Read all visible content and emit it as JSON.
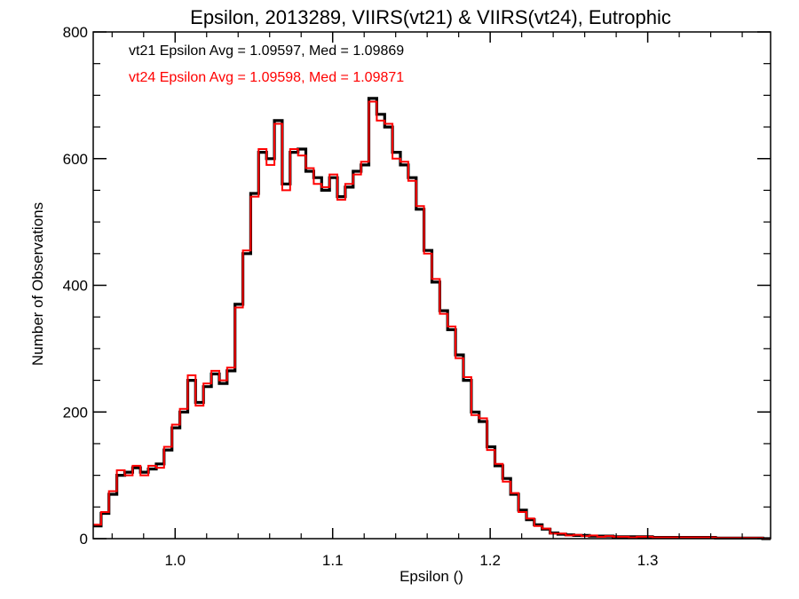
{
  "chart_data": {
    "type": "line",
    "title": "Epsilon, 2013289, VIIRS(vt21) & VIIRS(vt24), Eutrophic",
    "xlabel": "Epsilon ()",
    "ylabel": "Number of Observations",
    "xlim": [
      0.948,
      1.378
    ],
    "ylim": [
      0,
      800
    ],
    "grid": false,
    "x_ticks": [
      1.0,
      1.1,
      1.2,
      1.3
    ],
    "x_tick_labels": [
      "1.0",
      "1.1",
      "1.2",
      "1.3"
    ],
    "y_ticks": [
      0,
      200,
      400,
      600,
      800
    ],
    "y_tick_labels": [
      "0",
      "200",
      "400",
      "600",
      "800"
    ],
    "annotations": [
      {
        "text": "vt21 Epsilon Avg = 1.09597, Med = 1.09869",
        "color": "#000000"
      },
      {
        "text": "vt24 Epsilon Avg = 1.09598, Med = 1.09871",
        "color": "#ff0000"
      }
    ],
    "series": [
      {
        "color": "#000000",
        "step": true,
        "x": [
          0.948,
          0.953,
          0.958,
          0.963,
          0.968,
          0.973,
          0.978,
          0.983,
          0.988,
          0.993,
          0.998,
          1.003,
          1.008,
          1.013,
          1.018,
          1.023,
          1.028,
          1.033,
          1.038,
          1.043,
          1.048,
          1.053,
          1.058,
          1.063,
          1.068,
          1.073,
          1.078,
          1.083,
          1.088,
          1.093,
          1.098,
          1.103,
          1.108,
          1.113,
          1.118,
          1.123,
          1.128,
          1.133,
          1.138,
          1.143,
          1.148,
          1.153,
          1.158,
          1.163,
          1.168,
          1.173,
          1.178,
          1.183,
          1.188,
          1.193,
          1.198,
          1.203,
          1.208,
          1.213,
          1.218,
          1.223,
          1.228,
          1.233,
          1.238,
          1.243,
          1.248,
          1.253,
          1.258,
          1.263,
          1.268,
          1.273,
          1.278,
          1.283,
          1.288,
          1.293,
          1.298,
          1.303,
          1.308,
          1.313,
          1.318,
          1.323,
          1.328,
          1.333,
          1.338,
          1.343,
          1.348,
          1.353,
          1.358,
          1.363,
          1.368,
          1.373
        ],
        "y": [
          20,
          40,
          70,
          100,
          105,
          112,
          105,
          110,
          118,
          140,
          175,
          200,
          250,
          215,
          240,
          260,
          245,
          265,
          370,
          450,
          545,
          610,
          600,
          660,
          560,
          610,
          615,
          580,
          570,
          550,
          570,
          540,
          555,
          580,
          590,
          695,
          670,
          650,
          610,
          590,
          570,
          520,
          455,
          405,
          360,
          330,
          290,
          250,
          200,
          185,
          145,
          115,
          95,
          70,
          45,
          30,
          22,
          15,
          9,
          7,
          6,
          5,
          5,
          4,
          4,
          4,
          3,
          3,
          3,
          3,
          3,
          2,
          2,
          2,
          2,
          2,
          2,
          2,
          2,
          1,
          1,
          1,
          1,
          1,
          1,
          0
        ]
      },
      {
        "color": "#ff0000",
        "step": true,
        "x": [
          0.948,
          0.953,
          0.958,
          0.963,
          0.968,
          0.973,
          0.978,
          0.983,
          0.988,
          0.993,
          0.998,
          1.003,
          1.008,
          1.013,
          1.018,
          1.023,
          1.028,
          1.033,
          1.038,
          1.043,
          1.048,
          1.053,
          1.058,
          1.063,
          1.068,
          1.073,
          1.078,
          1.083,
          1.088,
          1.093,
          1.098,
          1.103,
          1.108,
          1.113,
          1.118,
          1.123,
          1.128,
          1.133,
          1.138,
          1.143,
          1.148,
          1.153,
          1.158,
          1.163,
          1.168,
          1.173,
          1.178,
          1.183,
          1.188,
          1.193,
          1.198,
          1.203,
          1.208,
          1.213,
          1.218,
          1.223,
          1.228,
          1.233,
          1.238,
          1.243,
          1.248,
          1.253,
          1.258,
          1.263,
          1.268,
          1.273,
          1.278,
          1.283,
          1.288,
          1.293,
          1.298,
          1.303,
          1.308,
          1.313,
          1.318,
          1.323,
          1.328,
          1.333,
          1.338,
          1.343,
          1.348,
          1.353,
          1.358,
          1.363,
          1.368,
          1.373
        ],
        "y": [
          22,
          42,
          75,
          108,
          100,
          115,
          100,
          115,
          112,
          145,
          180,
          205,
          258,
          210,
          245,
          265,
          250,
          270,
          365,
          455,
          540,
          615,
          590,
          655,
          550,
          615,
          605,
          585,
          560,
          555,
          575,
          535,
          560,
          575,
          595,
          690,
          660,
          655,
          600,
          595,
          565,
          525,
          450,
          410,
          355,
          335,
          285,
          255,
          195,
          190,
          140,
          118,
          90,
          72,
          42,
          32,
          20,
          16,
          8,
          8,
          5,
          6,
          4,
          5,
          3,
          4,
          3,
          3,
          2,
          3,
          3,
          2,
          2,
          2,
          2,
          2,
          2,
          2,
          2,
          1,
          1,
          1,
          1,
          1,
          1,
          0
        ]
      }
    ]
  }
}
